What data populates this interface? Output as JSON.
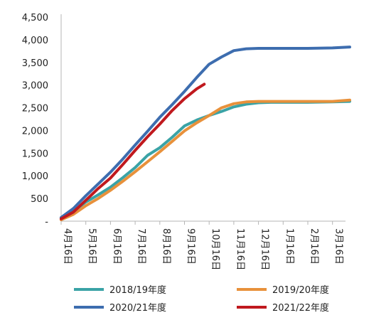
{
  "chart_data": {
    "type": "line",
    "title": "",
    "xlabel": "",
    "ylabel": "",
    "categories": [
      "4月16日",
      "5月16日",
      "6月16日",
      "7月16日",
      "8月16日",
      "9月16日",
      "10月16日",
      "11月16日",
      "12月16日",
      "1月16日",
      "2月16日",
      "3月16日"
    ],
    "y_ticks": [
      "-",
      "500",
      "1,000",
      "1,500",
      "2,000",
      "2,500",
      "3,000",
      "3,500",
      "4,000",
      "4,500"
    ],
    "ylim": [
      0,
      4500
    ],
    "grid": false,
    "legend_position": "bottom",
    "series": [
      {
        "name": "2018/19年度",
        "color": "#3AA3A6",
        "points": [
          [
            0,
            60
          ],
          [
            0.5,
            220
          ],
          [
            1,
            420
          ],
          [
            1.5,
            580
          ],
          [
            2,
            750
          ],
          [
            2.5,
            960
          ],
          [
            3,
            1180
          ],
          [
            3.5,
            1450
          ],
          [
            4,
            1620
          ],
          [
            4.5,
            1850
          ],
          [
            5,
            2100
          ],
          [
            5.5,
            2230
          ],
          [
            6,
            2330
          ],
          [
            6.5,
            2420
          ],
          [
            7,
            2520
          ],
          [
            7.5,
            2580
          ],
          [
            8,
            2610
          ],
          [
            8.5,
            2620
          ],
          [
            9,
            2620
          ],
          [
            10,
            2620
          ],
          [
            11,
            2630
          ],
          [
            11.7,
            2640
          ]
        ]
      },
      {
        "name": "2019/20年度",
        "color": "#E8913B",
        "points": [
          [
            0,
            30
          ],
          [
            0.5,
            150
          ],
          [
            1,
            340
          ],
          [
            1.5,
            500
          ],
          [
            2,
            680
          ],
          [
            2.5,
            880
          ],
          [
            3,
            1090
          ],
          [
            3.5,
            1310
          ],
          [
            4,
            1530
          ],
          [
            4.5,
            1760
          ],
          [
            5,
            1990
          ],
          [
            5.5,
            2170
          ],
          [
            6,
            2330
          ],
          [
            6.5,
            2500
          ],
          [
            7,
            2590
          ],
          [
            7.5,
            2630
          ],
          [
            8,
            2640
          ],
          [
            9,
            2640
          ],
          [
            10,
            2640
          ],
          [
            11,
            2640
          ],
          [
            11.7,
            2670
          ]
        ]
      },
      {
        "name": "2020/21年度",
        "color": "#3D6DAF",
        "points": [
          [
            0,
            80
          ],
          [
            0.5,
            280
          ],
          [
            1,
            560
          ],
          [
            1.5,
            820
          ],
          [
            2,
            1080
          ],
          [
            2.5,
            1370
          ],
          [
            3,
            1680
          ],
          [
            3.5,
            1980
          ],
          [
            4,
            2290
          ],
          [
            4.5,
            2570
          ],
          [
            5,
            2860
          ],
          [
            5.5,
            3170
          ],
          [
            6,
            3460
          ],
          [
            6.5,
            3620
          ],
          [
            7,
            3760
          ],
          [
            7.5,
            3800
          ],
          [
            8,
            3810
          ],
          [
            9,
            3810
          ],
          [
            10,
            3810
          ],
          [
            11,
            3820
          ],
          [
            11.7,
            3840
          ]
        ]
      },
      {
        "name": "2021/22年度",
        "color": "#C0191E",
        "points": [
          [
            0,
            50
          ],
          [
            0.5,
            200
          ],
          [
            1,
            460
          ],
          [
            1.5,
            720
          ],
          [
            2,
            950
          ],
          [
            2.5,
            1250
          ],
          [
            3,
            1560
          ],
          [
            3.5,
            1860
          ],
          [
            4,
            2140
          ],
          [
            4.5,
            2440
          ],
          [
            5,
            2700
          ],
          [
            5.5,
            2920
          ],
          [
            5.8,
            3020
          ]
        ]
      }
    ]
  }
}
